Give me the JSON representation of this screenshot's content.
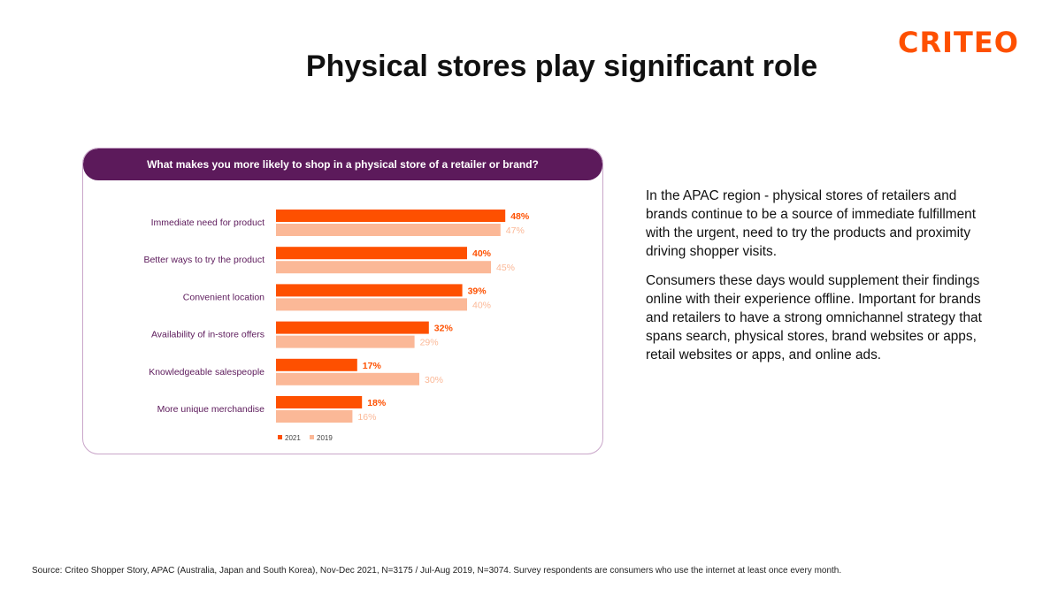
{
  "logo": {
    "text": "CRITEO"
  },
  "title": "Physical stores play significant role",
  "chart_data": {
    "type": "bar",
    "orientation": "horizontal",
    "title": "What makes you more likely to shop in a physical store of a retailer or brand?",
    "categories": [
      "Immediate need for product",
      "Better ways to try the product",
      "Convenient location",
      "Availability of in-store offers",
      "Knowledgeable salespeople",
      "More unique merchandise"
    ],
    "series": [
      {
        "name": "2021",
        "values": [
          48,
          40,
          39,
          32,
          17,
          18
        ],
        "labels": [
          "48%",
          "40%",
          "39%",
          "32%",
          "17%",
          "18%"
        ],
        "color": "#fe5000"
      },
      {
        "name": "2019",
        "values": [
          47,
          45,
          40,
          29,
          30,
          16
        ],
        "labels": [
          "47%",
          "45%",
          "40%",
          "29%",
          "30%",
          "16%"
        ],
        "color": "#fbb897"
      }
    ],
    "xlim": [
      0,
      100
    ],
    "legend": "bottom-left",
    "grid": false
  },
  "body": {
    "paragraph1": "In the APAC region - physical stores of retailers and brands continue to be a source of immediate fulfillment with the urgent, need to try the products and proximity driving shopper visits.",
    "paragraph2": "Consumers these days would supplement their findings online with their experience offline. Important for brands and retailers to have a strong omnichannel strategy that spans search, physical stores, brand websites or apps, retail websites or apps, and online ads."
  },
  "source": "Source: Criteo Shopper Story, APAC (Australia, Japan and South Korea), Nov-Dec 2021, N=3175 / Jul-Aug 2019, N=3074. Survey respondents are consumers who use the internet at least once every month.",
  "colors": {
    "accent": "#fe5000",
    "accent_light": "#fbb897",
    "header_bg": "#5c1a5b",
    "category_text": "#5c1a5b"
  }
}
